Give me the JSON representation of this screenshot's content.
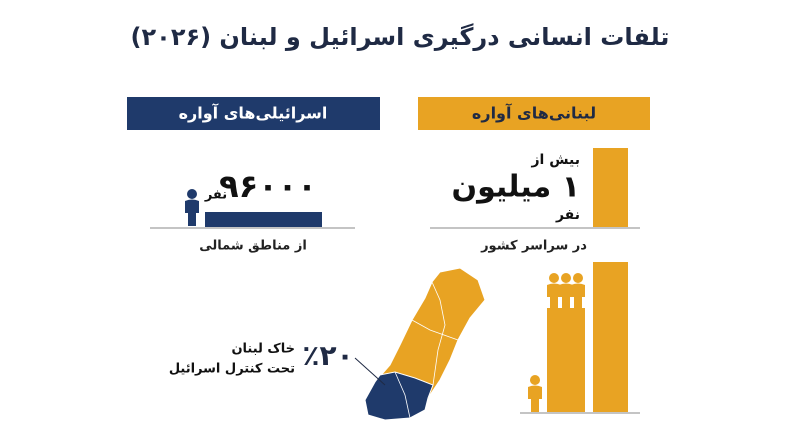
{
  "title": "تلفات انسانی درگیری اسرائیل و لبنان (۲۰۲۶)",
  "israel": {
    "header": "اسرائیلی‌های آواره",
    "count": "۹۶۰۰۰",
    "unit": "نفر",
    "note": "از مناطق شمالی"
  },
  "lebanon": {
    "header": "لبنانی‌های آواره",
    "prefix": "بیش از",
    "count": "۱ میلیون",
    "unit": "نفر",
    "note": "در سراسر کشور"
  },
  "map": {
    "percent": "٪۲۰",
    "label_line1": "خاک لبنان",
    "label_line2": "تحت کنترل اسرائیل"
  }
}
